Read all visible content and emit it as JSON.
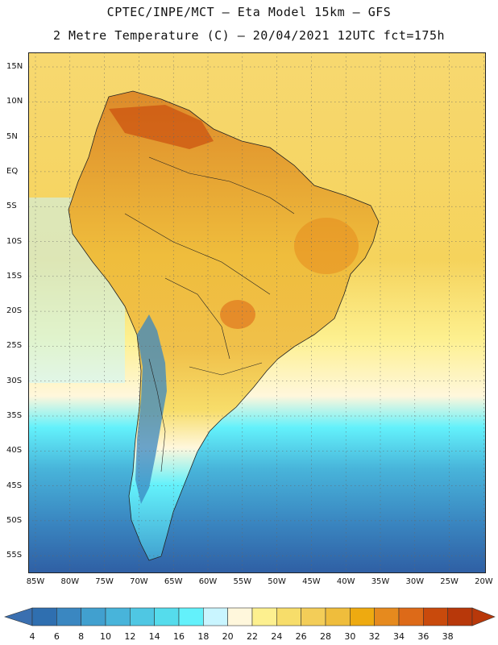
{
  "title_line1": "CPTEC/INPE/MCT –  Eta Model 15km – GFS",
  "title_line2": "2 Metre Temperature (C) – 20/04/2021 12UTC fct=175h",
  "latitude_labels": [
    "15N",
    "10N",
    "5N",
    "EQ",
    "5S",
    "10S",
    "15S",
    "20S",
    "25S",
    "30S",
    "35S",
    "40S",
    "45S",
    "50S",
    "55S"
  ],
  "longitude_labels": [
    "85W",
    "80W",
    "75W",
    "70W",
    "65W",
    "60W",
    "55W",
    "50W",
    "45W",
    "40W",
    "35W",
    "30W",
    "25W",
    "20W"
  ],
  "colorbar": {
    "labels": [
      "4",
      "6",
      "8",
      "10",
      "12",
      "14",
      "16",
      "18",
      "20",
      "22",
      "24",
      "26",
      "28",
      "30",
      "32",
      "34",
      "36",
      "38"
    ],
    "colors": [
      "#2f6fb0",
      "#3a87c1",
      "#41a0cf",
      "#48b4da",
      "#4fc7e3",
      "#55dcec",
      "#63f1fb",
      "#c9f5ff",
      "#fff7dc",
      "#fdf08f",
      "#f7dd6a",
      "#f3cd58",
      "#efbd3c",
      "#eeaa10",
      "#e68a1e",
      "#dd6a18",
      "#c94a0c",
      "#b8380a"
    ]
  }
}
